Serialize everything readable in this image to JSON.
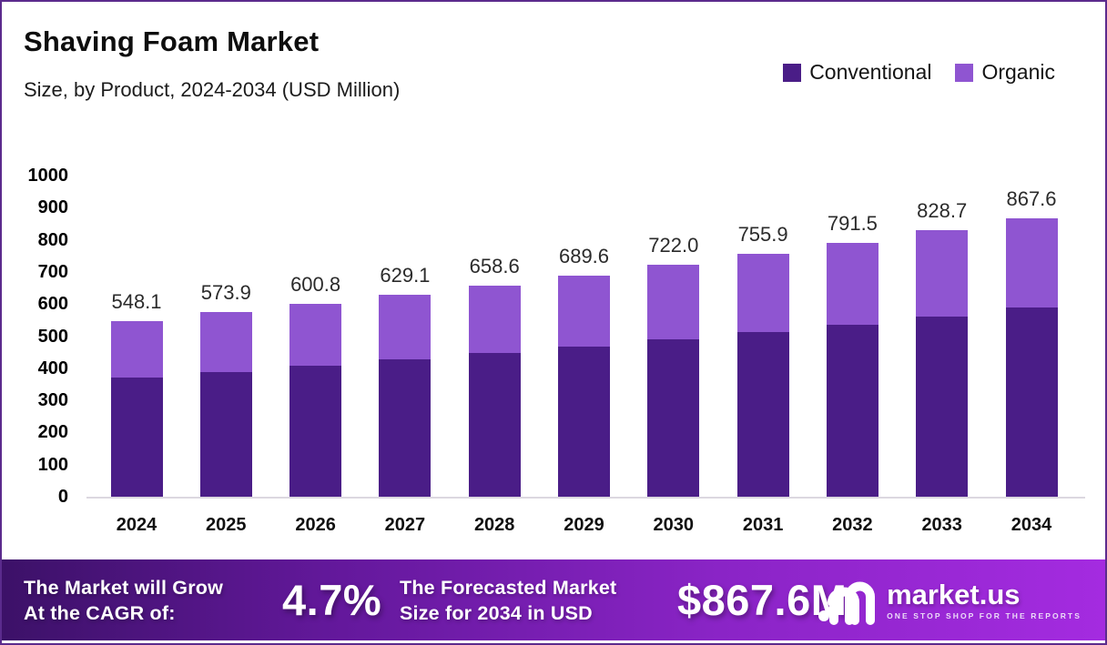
{
  "header": {
    "title": "Shaving Foam Market",
    "subtitle": "Size, by Product, 2024-2034 (USD Million)"
  },
  "legend": {
    "items": [
      {
        "label": "Conventional",
        "color": "#4a1d87"
      },
      {
        "label": "Organic",
        "color": "#8f55d1"
      }
    ]
  },
  "chart_data": {
    "type": "bar",
    "stacked": true,
    "title": "Shaving Foam Market Size, by Product, 2024-2034 (USD Million)",
    "categories": [
      "2024",
      "2025",
      "2026",
      "2027",
      "2028",
      "2029",
      "2030",
      "2031",
      "2032",
      "2033",
      "2034"
    ],
    "series": [
      {
        "name": "Conventional",
        "color": "#4a1d87",
        "values": [
          371.6,
          389.1,
          407.3,
          426.5,
          446.5,
          467.5,
          489.5,
          512.5,
          536.6,
          561.9,
          588.2
        ]
      },
      {
        "name": "Organic",
        "color": "#8f55d1",
        "values": [
          176.5,
          184.8,
          193.5,
          202.6,
          212.1,
          222.1,
          232.5,
          243.4,
          254.9,
          266.8,
          279.4
        ]
      }
    ],
    "totals": [
      548.1,
      573.9,
      600.8,
      629.1,
      658.6,
      689.6,
      722.0,
      755.9,
      791.5,
      828.7,
      867.6
    ],
    "total_labels": [
      "548.1",
      "573.9",
      "600.8",
      "629.1",
      "658.6",
      "689.6",
      "722.0",
      "755.9",
      "791.5",
      "828.7",
      "867.6"
    ],
    "xlabel": "",
    "ylabel": "",
    "ylim": [
      0,
      1000
    ],
    "ytick_step": 100,
    "grid": false,
    "legend_position": "top-right"
  },
  "banner": {
    "cagr_label_line1": "The Market will Grow",
    "cagr_label_line2": "At the CAGR of:",
    "cagr_value": "4.7%",
    "forecast_label_line1": "The Forecasted Market",
    "forecast_label_line2": "Size for 2034 in USD",
    "forecast_value": "$867.6M",
    "brand": {
      "name": "market.us",
      "tagline": "ONE STOP SHOP FOR THE REPORTS"
    }
  },
  "colors": {
    "conventional": "#4a1d87",
    "organic": "#8f55d1",
    "frame_border": "#5b2b8d",
    "banner_gradient_left": "#3c1168",
    "banner_gradient_right": "#a42be0",
    "baseline": "#dcd8e0"
  }
}
